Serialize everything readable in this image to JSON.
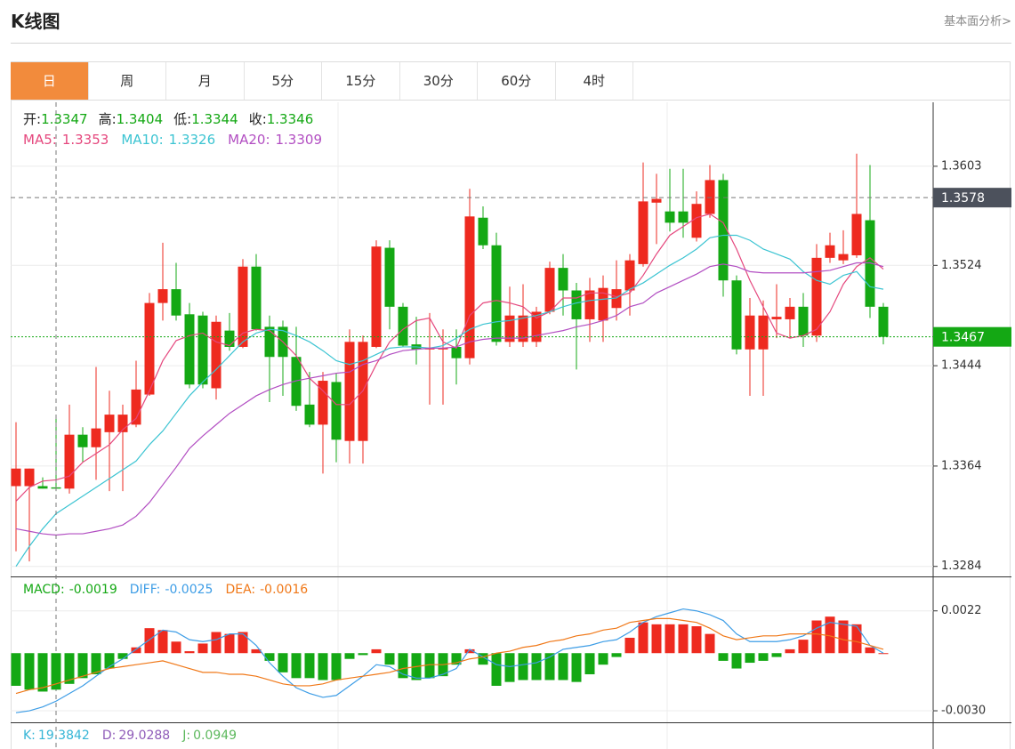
{
  "header": {
    "title": "K线图",
    "link": "基本面分析>"
  },
  "tabs": [
    "日",
    "周",
    "月",
    "5分",
    "15分",
    "30分",
    "60分",
    "4时"
  ],
  "active_tab": 0,
  "chart_data": [
    {
      "type": "candlestick",
      "up_color": "#ee2a1f",
      "down_color": "#14a814",
      "ylim": [
        1.3276,
        1.3654
      ],
      "yticks": [
        1.3603,
        1.3524,
        1.3444,
        1.3364,
        1.3284
      ],
      "grid": true,
      "ohlc_labels": [
        "开:",
        "高:",
        "低:",
        "收:"
      ],
      "crosshair_index": 3,
      "crosshair_price": 1.3578,
      "open": [
        1.3348,
        1.3348,
        1.3348,
        1.3347,
        1.3346,
        1.3389,
        1.3379,
        1.3391,
        1.3391,
        1.3397,
        1.3421,
        1.3494,
        1.3505,
        1.3485,
        1.3484,
        1.3426,
        1.3472,
        1.3459,
        1.3523,
        1.3475,
        1.3475,
        1.3451,
        1.3413,
        1.3397,
        1.3431,
        1.3384,
        1.3384,
        1.3459,
        1.3538,
        1.3491,
        1.3461,
        1.3457,
        1.3457,
        1.3459,
        1.345,
        1.3562,
        1.354,
        1.3463,
        1.3463,
        1.3463,
        1.3487,
        1.3522,
        1.3504,
        1.3481,
        1.348,
        1.349,
        1.3504,
        1.3525,
        1.3574,
        1.3567,
        1.3567,
        1.3546,
        1.3565,
        1.3592,
        1.3512,
        1.3457,
        1.3457,
        1.3481,
        1.3481,
        1.3491,
        1.3468,
        1.353,
        1.3528,
        1.3532,
        1.356,
        1.3491
      ],
      "high": [
        1.3399,
        1.3362,
        1.3355,
        1.3404,
        1.3413,
        1.3395,
        1.3443,
        1.3424,
        1.3413,
        1.3448,
        1.3502,
        1.3542,
        1.3526,
        1.3494,
        1.3487,
        1.3484,
        1.3486,
        1.3529,
        1.3533,
        1.3484,
        1.348,
        1.3475,
        1.3439,
        1.3439,
        1.3438,
        1.3473,
        1.3468,
        1.3544,
        1.3544,
        1.3494,
        1.3483,
        1.3486,
        1.3473,
        1.3473,
        1.3585,
        1.3571,
        1.355,
        1.3507,
        1.3509,
        1.3491,
        1.3527,
        1.3533,
        1.351,
        1.3514,
        1.3516,
        1.3528,
        1.3533,
        1.3606,
        1.3597,
        1.3601,
        1.3601,
        1.3583,
        1.3604,
        1.3597,
        1.3516,
        1.3498,
        1.3496,
        1.3509,
        1.3498,
        1.3502,
        1.3541,
        1.355,
        1.3552,
        1.3613,
        1.3604,
        1.3494
      ],
      "low": [
        1.3296,
        1.3288,
        1.3346,
        1.3344,
        1.3342,
        1.3367,
        1.3353,
        1.3344,
        1.3344,
        1.3395,
        1.342,
        1.348,
        1.348,
        1.3426,
        1.3426,
        1.3417,
        1.3456,
        1.3458,
        1.3472,
        1.3415,
        1.342,
        1.3408,
        1.3395,
        1.3358,
        1.3367,
        1.3366,
        1.3366,
        1.3458,
        1.3473,
        1.3459,
        1.3445,
        1.3413,
        1.3413,
        1.3429,
        1.3445,
        1.3537,
        1.346,
        1.3459,
        1.3459,
        1.3459,
        1.3485,
        1.3484,
        1.3441,
        1.3463,
        1.3463,
        1.348,
        1.3484,
        1.3523,
        1.3541,
        1.3551,
        1.3546,
        1.3543,
        1.3562,
        1.3499,
        1.3453,
        1.342,
        1.342,
        1.3466,
        1.3466,
        1.3459,
        1.3463,
        1.3526,
        1.3525,
        1.353,
        1.3482,
        1.3461
      ],
      "close": [
        1.3362,
        1.3362,
        1.3346,
        1.3346,
        1.3389,
        1.3379,
        1.3394,
        1.3405,
        1.3405,
        1.3425,
        1.3494,
        1.3505,
        1.3484,
        1.3429,
        1.3429,
        1.3479,
        1.3459,
        1.3523,
        1.3473,
        1.3451,
        1.3451,
        1.3412,
        1.3397,
        1.3432,
        1.3385,
        1.3463,
        1.3463,
        1.3539,
        1.3491,
        1.346,
        1.3457,
        1.3458,
        1.3458,
        1.345,
        1.3563,
        1.354,
        1.3463,
        1.3484,
        1.3484,
        1.3487,
        1.3522,
        1.3504,
        1.3481,
        1.3504,
        1.3506,
        1.3505,
        1.3528,
        1.3575,
        1.3577,
        1.3558,
        1.3558,
        1.3573,
        1.3592,
        1.3512,
        1.3457,
        1.3484,
        1.3484,
        1.3483,
        1.3491,
        1.3468,
        1.353,
        1.354,
        1.3533,
        1.3565,
        1.3491,
        1.3467
      ],
      "ma": [
        {
          "name": "MA5:",
          "color": "#e5487e",
          "values": [
            1.3336,
            1.3347,
            1.3352,
            1.3353,
            1.3356,
            1.3367,
            1.3374,
            1.3381,
            1.3393,
            1.3402,
            1.3424,
            1.3448,
            1.3464,
            1.3468,
            1.347,
            1.3463,
            1.346,
            1.347,
            1.3473,
            1.3472,
            1.3463,
            1.3452,
            1.3434,
            1.3424,
            1.3413,
            1.3413,
            1.3424,
            1.3445,
            1.3463,
            1.3473,
            1.348,
            1.3482,
            1.3463,
            1.3458,
            1.3484,
            1.3494,
            1.3496,
            1.3494,
            1.3491,
            1.3482,
            1.3487,
            1.3498,
            1.3498,
            1.3502,
            1.3502,
            1.3499,
            1.3502,
            1.3516,
            1.3533,
            1.3548,
            1.3555,
            1.3562,
            1.3565,
            1.3558,
            1.3537,
            1.3512,
            1.3491,
            1.347,
            1.3466,
            1.3468,
            1.3473,
            1.3487,
            1.3509,
            1.3523,
            1.353,
            1.3521
          ]
        },
        {
          "name": "MA10:",
          "color": "#3cc4d2",
          "values": [
            1.3284,
            1.33,
            1.3314,
            1.3326,
            1.3333,
            1.334,
            1.3347,
            1.3354,
            1.3361,
            1.3368,
            1.3381,
            1.3392,
            1.3406,
            1.342,
            1.3431,
            1.3441,
            1.3452,
            1.3463,
            1.347,
            1.3473,
            1.3472,
            1.3468,
            1.3463,
            1.3456,
            1.3448,
            1.3445,
            1.3448,
            1.3453,
            1.3458,
            1.3459,
            1.3459,
            1.3458,
            1.346,
            1.3466,
            1.3473,
            1.3477,
            1.3479,
            1.348,
            1.3482,
            1.3484,
            1.3487,
            1.3491,
            1.3494,
            1.3496,
            1.3497,
            1.3498,
            1.3505,
            1.351,
            1.3517,
            1.3524,
            1.353,
            1.3537,
            1.3546,
            1.3548,
            1.3548,
            1.3544,
            1.3537,
            1.3533,
            1.3529,
            1.3519,
            1.3512,
            1.3509,
            1.3516,
            1.3519,
            1.3507,
            1.3505
          ]
        },
        {
          "name": "MA20:",
          "color": "#b24ec2",
          "values": [
            1.3314,
            1.3312,
            1.331,
            1.3309,
            1.331,
            1.331,
            1.3312,
            1.3314,
            1.3317,
            1.3324,
            1.3335,
            1.3349,
            1.3363,
            1.3378,
            1.3388,
            1.3397,
            1.3406,
            1.3413,
            1.342,
            1.3425,
            1.3429,
            1.3432,
            1.3434,
            1.3436,
            1.3438,
            1.3439,
            1.3445,
            1.3448,
            1.3453,
            1.3456,
            1.3457,
            1.3458,
            1.3458,
            1.3459,
            1.3463,
            1.3465,
            1.3466,
            1.3466,
            1.3466,
            1.3468,
            1.347,
            1.3472,
            1.3475,
            1.3477,
            1.348,
            1.3484,
            1.3491,
            1.3494,
            1.3502,
            1.3507,
            1.3512,
            1.3517,
            1.3523,
            1.3525,
            1.3523,
            1.3519,
            1.3518,
            1.3518,
            1.3518,
            1.3518,
            1.3519,
            1.352,
            1.3523,
            1.3526,
            1.3526,
            1.3523
          ]
        }
      ]
    },
    {
      "type": "macd",
      "ylim": [
        -0.0036,
        0.0039
      ],
      "yticks": [
        0.0022,
        {
          "value": -0.003,
          "label": "-0.0030"
        }
      ],
      "series": [
        {
          "name": "MACD:",
          "color": "#14a814",
          "values": [
            -0.0017,
            -0.0019,
            -0.002,
            -0.0019,
            -0.0016,
            -0.0013,
            -0.0011,
            -0.0008,
            -0.0003,
            0.0003,
            0.0013,
            0.0012,
            0.0006,
            0.0001,
            0.0005,
            0.0011,
            0.001,
            0.0011,
            0.0002,
            -0.0004,
            -0.001,
            -0.0013,
            -0.0013,
            -0.0014,
            -0.0014,
            -0.0003,
            -0.0001,
            0.0002,
            -0.0006,
            -0.0013,
            -0.0014,
            -0.0013,
            -0.0012,
            -0.0006,
            0.0002,
            -0.0006,
            -0.0017,
            -0.0015,
            -0.0014,
            -0.0014,
            -0.0014,
            -0.0014,
            -0.0015,
            -0.0011,
            -0.0006,
            -0.0002,
            0.0008,
            0.0016,
            0.0015,
            0.0015,
            0.0015,
            0.0014,
            0.001,
            -0.0004,
            -0.0008,
            -0.0005,
            -0.0004,
            -0.0002,
            0.0002,
            0.0007,
            0.0017,
            0.0019,
            0.0017,
            0.0015,
            0.0003,
            0
          ]
        },
        {
          "name": "DIFF:",
          "color": "#3d9de6",
          "values": [
            -0.0031,
            -0.003,
            -0.0028,
            -0.0025,
            -0.0021,
            -0.0017,
            -0.0012,
            -0.0007,
            -0.0003,
            0.0002,
            0.0007,
            0.0012,
            0.0011,
            0.0007,
            0.0006,
            0.0007,
            0.001,
            0.001,
            0.0004,
            -0.0005,
            -0.0012,
            -0.0018,
            -0.0021,
            -0.0023,
            -0.0022,
            -0.0017,
            -0.0012,
            -0.0006,
            -0.0007,
            -0.0011,
            -0.0013,
            -0.0013,
            -0.0011,
            -0.0008,
            0.0002,
            -0.0002,
            -0.0006,
            -0.0007,
            -0.0006,
            -0.0005,
            -0.0002,
            0.0002,
            0.0003,
            0.0004,
            0.0006,
            0.0007,
            0.0011,
            0.0016,
            0.0019,
            0.0021,
            0.0023,
            0.0022,
            0.002,
            0.0017,
            0.001,
            0.0006,
            0.0006,
            0.0006,
            0.0007,
            0.0009,
            0.0013,
            0.0016,
            0.0015,
            0.0014,
            0.0004,
            0
          ]
        },
        {
          "name": "DEA:",
          "color": "#f07818",
          "values": [
            -0.0021,
            -0.0019,
            -0.0018,
            -0.0016,
            -0.0014,
            -0.0012,
            -0.001,
            -0.0008,
            -0.0007,
            -0.0006,
            -0.0005,
            -0.0004,
            -0.0006,
            -0.0008,
            -0.001,
            -0.001,
            -0.0011,
            -0.0011,
            -0.0012,
            -0.0014,
            -0.0016,
            -0.0017,
            -0.0017,
            -0.0016,
            -0.0014,
            -0.0013,
            -0.0012,
            -0.0011,
            -0.001,
            -0.0008,
            -0.0007,
            -0.0006,
            -0.0006,
            -0.0005,
            -0.0003,
            -0.0002,
            0,
            0.0001,
            0.0003,
            0.0004,
            0.0006,
            0.0007,
            0.0009,
            0.001,
            0.0012,
            0.0013,
            0.0016,
            0.0017,
            0.0018,
            0.0018,
            0.0017,
            0.0016,
            0.0013,
            0.0009,
            0.0007,
            0.0008,
            0.0009,
            0.0009,
            0.001,
            0.001,
            0.001,
            0.0009,
            0.0007,
            0.0006,
            0.0004,
            0.0002
          ]
        }
      ]
    },
    {
      "type": "kdj",
      "series": [
        {
          "name": "K:",
          "color": "#35b5d6",
          "value": 19.3842
        },
        {
          "name": "D:",
          "color": "#8e5bb8",
          "value": 29.0288
        },
        {
          "name": "J:",
          "color": "#5cb85c",
          "value": 0.0949
        }
      ]
    }
  ]
}
